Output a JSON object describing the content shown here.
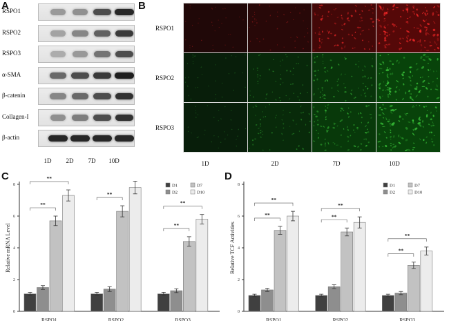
{
  "panels": {
    "a": "A",
    "b": "B",
    "c": "C",
    "d": "D"
  },
  "blot": {
    "labels": [
      "RSPO1",
      "RSPO2",
      "RSPO3",
      "α-SMA",
      "β-catenin",
      "Collagen-I",
      "β-actin"
    ],
    "days": [
      "1D",
      "2D",
      "7D",
      "10D"
    ],
    "intensity": [
      [
        0.3,
        0.35,
        0.7,
        0.9
      ],
      [
        0.25,
        0.4,
        0.6,
        0.8
      ],
      [
        0.2,
        0.3,
        0.5,
        0.7
      ],
      [
        0.55,
        0.7,
        0.8,
        0.95
      ],
      [
        0.4,
        0.55,
        0.7,
        0.85
      ],
      [
        0.35,
        0.45,
        0.7,
        0.85
      ],
      [
        0.9,
        0.9,
        0.9,
        0.9
      ]
    ]
  },
  "fluor": {
    "rows": [
      "RSPO1",
      "RSPO2",
      "RSPO3"
    ],
    "days": [
      "1D",
      "2D",
      "7D",
      "10D"
    ],
    "colors": [
      "#ff2a2a",
      "#3ecf3e",
      "#3ecf3e"
    ],
    "intensity": [
      [
        0.12,
        0.25,
        0.7,
        1.0
      ],
      [
        0.15,
        0.35,
        0.6,
        0.9
      ],
      [
        0.15,
        0.4,
        0.7,
        0.9
      ]
    ]
  },
  "chart_data": [
    {
      "type": "bar",
      "categories": [
        "RSPO1",
        "RSPO2",
        "RSPO3"
      ],
      "series": [
        {
          "name": "D1",
          "values": [
            1.1,
            1.1,
            1.1
          ],
          "err": [
            0.1,
            0.1,
            0.1
          ],
          "color": "#404040"
        },
        {
          "name": "D2",
          "values": [
            1.5,
            1.4,
            1.3
          ],
          "err": [
            0.12,
            0.15,
            0.12
          ],
          "color": "#8e8e8e"
        },
        {
          "name": "D7",
          "values": [
            5.7,
            6.3,
            4.4
          ],
          "err": [
            0.3,
            0.35,
            0.3
          ],
          "color": "#c2c2c2"
        },
        {
          "name": "D10",
          "values": [
            7.3,
            7.8,
            5.8
          ],
          "err": [
            0.35,
            0.4,
            0.3
          ],
          "color": "#ececec"
        }
      ],
      "ylabel": "Relative mRNA Level",
      "ylim": [
        0,
        8
      ],
      "yticks": [
        "0",
        "2",
        "4",
        "6",
        "8"
      ],
      "significance": [
        "**",
        "**",
        "**",
        "**",
        "**",
        "**"
      ]
    },
    {
      "type": "bar",
      "categories": [
        "RSPO1",
        "RSPO2",
        "RSPO3"
      ],
      "series": [
        {
          "name": "D1",
          "values": [
            1.0,
            1.0,
            1.0
          ],
          "err": [
            0.08,
            0.08,
            0.08
          ],
          "color": "#404040"
        },
        {
          "name": "D2",
          "values": [
            1.35,
            1.55,
            1.15
          ],
          "err": [
            0.1,
            0.12,
            0.1
          ],
          "color": "#8e8e8e"
        },
        {
          "name": "D7",
          "values": [
            5.1,
            5.0,
            2.9
          ],
          "err": [
            0.25,
            0.25,
            0.2
          ],
          "color": "#c2c2c2"
        },
        {
          "name": "D10",
          "values": [
            6.0,
            5.6,
            3.8
          ],
          "err": [
            0.3,
            0.35,
            0.25
          ],
          "color": "#ececec"
        }
      ],
      "ylabel": "Relative TCF Activities",
      "ylim": [
        0,
        8
      ],
      "yticks": [
        "0",
        "2",
        "4",
        "6",
        "8"
      ],
      "significance": [
        "**",
        "**",
        "**",
        "**",
        "**",
        "**"
      ]
    }
  ]
}
